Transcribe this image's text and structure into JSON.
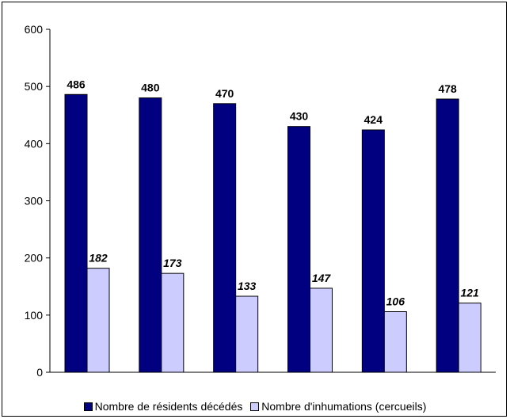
{
  "chart_data": {
    "type": "bar",
    "title": "",
    "xlabel": "",
    "ylabel": "",
    "categories": [
      "",
      "",
      "",
      "",
      "",
      ""
    ],
    "ylim": [
      0,
      600
    ],
    "yticks": [
      0,
      100,
      200,
      300,
      400,
      500,
      600
    ],
    "ytick_labels": [
      "0",
      "100",
      "200",
      "300",
      "400",
      "500",
      "600"
    ],
    "grid": false,
    "legend_position": "bottom",
    "series": [
      {
        "name": "Nombre de résidents décédés",
        "values": [
          486,
          480,
          470,
          430,
          424,
          478
        ],
        "value_labels": [
          "486",
          "480",
          "470",
          "430",
          "424",
          "478"
        ],
        "color": "#000080"
      },
      {
        "name": "Nombre d'inhumations (cercueils)",
        "values": [
          182,
          173,
          133,
          147,
          106,
          121
        ],
        "value_labels": [
          "182",
          "173",
          "133",
          "147",
          "106",
          "121"
        ],
        "color": "#CCCCFF"
      }
    ]
  }
}
